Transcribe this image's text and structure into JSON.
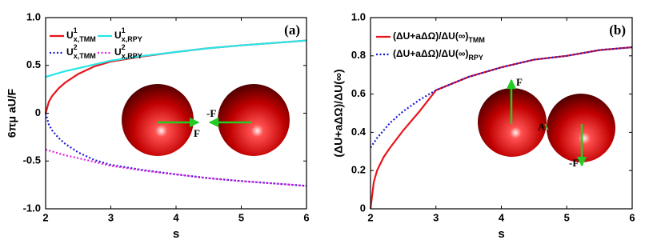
{
  "chart_data": [
    {
      "type": "line",
      "panel_label": "(a)",
      "x_label": "s",
      "y_label": "6πμ aU/F",
      "xlim": [
        2,
        6
      ],
      "ylim": [
        -1,
        1
      ],
      "xticks": [
        2,
        3,
        4,
        5,
        6
      ],
      "yticks": [
        {
          "value": -1,
          "label": "-1.0"
        },
        -0.5,
        0,
        0.5,
        {
          "value": 1,
          "label": "1.0"
        }
      ],
      "x": [
        2,
        2.05,
        2.1,
        2.2,
        2.3,
        2.5,
        2.75,
        3,
        3.5,
        4,
        4.5,
        5,
        5.5,
        6
      ],
      "series": [
        {
          "name": "U",
          "superscript": "1",
          "subscript": "x,TMM",
          "color": "#e8141c",
          "line_style": "solid",
          "values": [
            0,
            0.12,
            0.18,
            0.26,
            0.32,
            0.41,
            0.49,
            0.54,
            0.595,
            0.64,
            0.68,
            0.71,
            0.735,
            0.76
          ]
        },
        {
          "name": "U",
          "superscript": "1",
          "subscript": "x,RPY",
          "color": "#28e6e6",
          "line_style": "solid",
          "values": [
            0.38,
            0.39,
            0.4,
            0.42,
            0.44,
            0.47,
            0.51,
            0.55,
            0.6,
            0.64,
            0.68,
            0.71,
            0.735,
            0.76
          ]
        },
        {
          "name": "U",
          "superscript": "2",
          "subscript": "x,TMM",
          "color": "#1a1ad0",
          "line_style": "dotted",
          "values": [
            0,
            -0.12,
            -0.18,
            -0.26,
            -0.32,
            -0.41,
            -0.49,
            -0.54,
            -0.595,
            -0.64,
            -0.68,
            -0.71,
            -0.735,
            -0.76
          ]
        },
        {
          "name": "U",
          "superscript": "2",
          "subscript": "x,RPY",
          "color": "#e020e0",
          "line_style": "dotted",
          "values": [
            -0.38,
            -0.39,
            -0.4,
            -0.42,
            -0.44,
            -0.47,
            -0.51,
            -0.55,
            -0.6,
            -0.64,
            -0.68,
            -0.71,
            -0.735,
            -0.76
          ]
        }
      ],
      "annotations": [
        "-F",
        "F"
      ]
    },
    {
      "type": "line",
      "panel_label": "(b)",
      "x_label": "s",
      "y_label": "(ΔU+aΔΩ)/ΔU(∞)",
      "xlim": [
        2,
        6
      ],
      "ylim": [
        0,
        1
      ],
      "xticks": [
        2,
        3,
        4,
        5,
        6
      ],
      "yticks": [
        0,
        0.2,
        0.4,
        0.6,
        0.8,
        {
          "value": 1,
          "label": "1.0"
        }
      ],
      "x": [
        2,
        2.05,
        2.1,
        2.2,
        2.3,
        2.5,
        2.75,
        3,
        3.5,
        4,
        4.5,
        5,
        5.5,
        6
      ],
      "series": [
        {
          "name": "(ΔU+aΔΩ)/ΔU(∞)",
          "subscript": "TMM",
          "color": "#e8141c",
          "line_style": "solid",
          "values": [
            0,
            0.14,
            0.2,
            0.27,
            0.32,
            0.41,
            0.51,
            0.62,
            0.69,
            0.74,
            0.78,
            0.8,
            0.83,
            0.845
          ]
        },
        {
          "name": "(ΔU+aΔΩ)/ΔU(∞)",
          "subscript": "RPY",
          "color": "#1a1ad0",
          "line_style": "dotted",
          "values": [
            0.32,
            0.345,
            0.37,
            0.41,
            0.45,
            0.51,
            0.57,
            0.62,
            0.69,
            0.74,
            0.78,
            0.8,
            0.83,
            0.845
          ]
        }
      ],
      "annotations": [
        "F",
        "-F",
        "A"
      ]
    }
  ]
}
